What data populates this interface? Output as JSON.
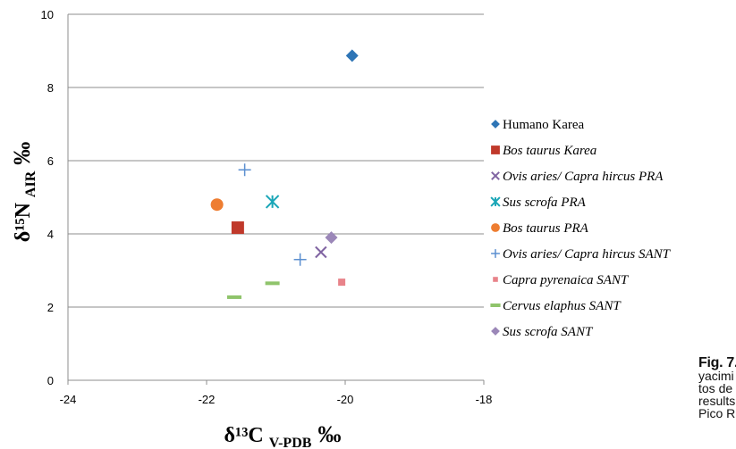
{
  "chart_data": {
    "type": "scatter",
    "title": "",
    "xlim": [
      -24,
      -18
    ],
    "ylim": [
      0,
      10
    ],
    "x_ticks": [
      "-24",
      "-22",
      "-20",
      "-18"
    ],
    "y_ticks": [
      "0",
      "2",
      "4",
      "6",
      "8",
      "10"
    ],
    "xlabel": {
      "main": "δ¹³C",
      "sub": "V-PDB",
      "unit": "‰"
    },
    "ylabel": {
      "main": "δ¹⁵N",
      "sub": "AIR",
      "unit": "‰"
    },
    "grid": "horizontal",
    "legend_position": "right",
    "series": [
      {
        "name": "Humano Karea",
        "marker": "diamond",
        "color": "#2e75b6",
        "italic": false,
        "points": [
          {
            "x": -19.9,
            "y": 8.87
          }
        ]
      },
      {
        "name": "Bos taurus Karea",
        "marker": "square",
        "color": "#c0392b",
        "italic": true,
        "points": [
          {
            "x": -21.55,
            "y": 4.17
          }
        ]
      },
      {
        "name": "Ovis aries/ Capra hircus PRA",
        "marker": "x",
        "color": "#8064a2",
        "italic": true,
        "points": [
          {
            "x": -20.35,
            "y": 3.5
          }
        ]
      },
      {
        "name": "Sus scrofa PRA",
        "marker": "star",
        "color": "#1aa6b7",
        "italic": true,
        "points": [
          {
            "x": -21.05,
            "y": 4.88
          }
        ]
      },
      {
        "name": "Bos taurus PRA",
        "marker": "circle",
        "color": "#ee7d31",
        "italic": true,
        "points": [
          {
            "x": -21.85,
            "y": 4.8
          }
        ]
      },
      {
        "name": "Ovis aries/ Capra hircus SANT",
        "marker": "plus",
        "color": "#5b8fd0",
        "italic": true,
        "points": [
          {
            "x": -21.45,
            "y": 5.75
          },
          {
            "x": -20.65,
            "y": 3.3
          }
        ]
      },
      {
        "name": "Capra pyrenaica SANT",
        "marker": "smallsquare",
        "color": "#e8838a",
        "italic": true,
        "points": [
          {
            "x": -20.05,
            "y": 2.68
          }
        ]
      },
      {
        "name": "Cervus elaphus SANT",
        "marker": "dash",
        "color": "#8fc46b",
        "italic": true,
        "points": [
          {
            "x": -21.6,
            "y": 2.27
          },
          {
            "x": -21.05,
            "y": 2.65
          }
        ]
      },
      {
        "name": "Sus scrofa SANT",
        "marker": "diamond",
        "color": "#9b87b8",
        "italic": true,
        "points": [
          {
            "x": -20.2,
            "y": 3.9
          }
        ]
      }
    ]
  },
  "caption": {
    "fig": "Fig. 7.",
    "lines": [
      "yacimi",
      "tos de",
      "results",
      "Pico R"
    ]
  }
}
